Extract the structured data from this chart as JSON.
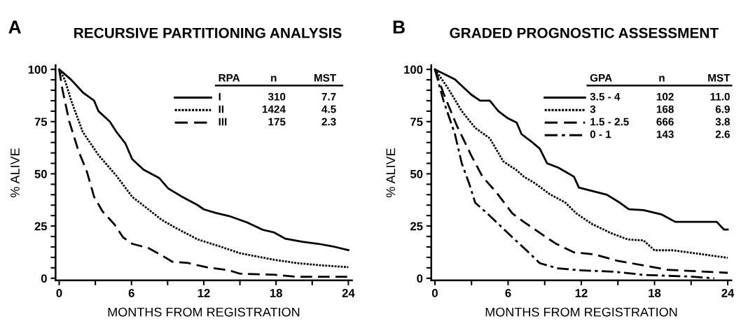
{
  "chart_data": [
    {
      "type": "line",
      "title": "RECURSIVE PARTITIONING ANALYSIS",
      "xlabel": "MONTHS FROM REGISTRATION",
      "ylabel": "% ALIVE",
      "legend_title": "RPA",
      "legend": "top right",
      "grid": false,
      "annotations": [
        "A",
        "n",
        "MST",
        "310",
        "7.7",
        "1424",
        "4.5",
        "175",
        "2.3"
      ],
      "xlim": [
        -0.3,
        24.3
      ],
      "ylim": [
        -1,
        102
      ],
      "xticks": [
        0,
        {
          "value": 3,
          "label": null
        },
        6,
        {
          "value": 9,
          "label": null
        },
        12,
        {
          "value": 15,
          "label": null
        },
        18,
        {
          "value": 21,
          "label": null
        },
        24
      ],
      "yticks": [
        0,
        {
          "value": 5,
          "label": null
        },
        {
          "value": 10,
          "label": null
        },
        {
          "value": 15,
          "label": null
        },
        {
          "value": 20,
          "label": null
        },
        25,
        {
          "value": 30,
          "label": null
        },
        {
          "value": 35,
          "label": null
        },
        {
          "value": 40,
          "label": null
        },
        {
          "value": 45,
          "label": null
        },
        50,
        {
          "value": 55,
          "label": null
        },
        {
          "value": 60,
          "label": null
        },
        {
          "value": 65,
          "label": null
        },
        {
          "value": 70,
          "label": null
        },
        75,
        {
          "value": 80,
          "label": null
        },
        {
          "value": 85,
          "label": null
        },
        {
          "value": 90,
          "label": null
        },
        {
          "value": 95,
          "label": null
        },
        100
      ],
      "series": [
        {
          "name": "I",
          "color": "#000000",
          "line_style": "solid",
          "x": [
            0,
            1.0,
            1.96,
            2.9,
            3.26,
            4.2,
            4.76,
            5.5,
            6.06,
            7.0,
            8.3,
            9.05,
            10.2,
            11.5,
            12.0,
            13.0,
            14.1,
            15.6,
            16.9,
            17.8,
            18.75,
            20.2,
            21.5,
            22.9,
            24
          ],
          "values": [
            100,
            95,
            89,
            85,
            80,
            75,
            70,
            64.5,
            57,
            52,
            48,
            43,
            39,
            35,
            33,
            31.3,
            29.8,
            26.7,
            23.2,
            22,
            19,
            17.5,
            16.5,
            15,
            13.5
          ]
        },
        {
          "name": "II",
          "color": "#000000",
          "line_style": "dotted",
          "x": [
            0,
            0.47,
            1.0,
            1.96,
            3.26,
            4.76,
            6.06,
            7.4,
            8.5,
            9.8,
            11.5,
            13.2,
            15.0,
            17.8,
            19.7,
            21.5,
            24
          ],
          "values": [
            100,
            95,
            85,
            70,
            59,
            49,
            39,
            33,
            28,
            23.7,
            18.6,
            15.5,
            12,
            8.9,
            7.3,
            6.3,
            5.3
          ]
        },
        {
          "name": "III",
          "color": "#000000",
          "line_style": "dashed",
          "x": [
            0,
            0.28,
            0.84,
            1.6,
            2.3,
            2.9,
            3.6,
            4.6,
            5.3,
            6.06,
            7.4,
            8.5,
            9.4,
            10.7,
            12.2,
            14.1,
            15.0,
            17.8,
            19.7,
            24
          ],
          "values": [
            100,
            90,
            75,
            61,
            51,
            39,
            32,
            25.7,
            19.6,
            16.5,
            14.5,
            11,
            7.9,
            7.3,
            5.3,
            3.8,
            2.2,
            1.7,
            0.7,
            0.7
          ]
        }
      ]
    },
    {
      "type": "line",
      "title": "GRADED PROGNOSTIC ASSESSMENT",
      "xlabel": "MONTHS FROM REGISTRATION",
      "ylabel": "% ALIVE",
      "legend_title": "GPA",
      "legend": "top right",
      "grid": false,
      "annotations": [
        "B",
        "n",
        "MST",
        "102",
        "11.0",
        "168",
        "6.9",
        "666",
        "3.8",
        "143",
        "2.6"
      ],
      "xlim": [
        -0.3,
        24.3
      ],
      "ylim": [
        -1,
        102
      ],
      "xticks": [
        0,
        {
          "value": 3,
          "label": null
        },
        6,
        {
          "value": 9,
          "label": null
        },
        12,
        {
          "value": 15,
          "label": null
        },
        18,
        {
          "value": 21,
          "label": null
        },
        24
      ],
      "yticks": [
        0,
        {
          "value": 5,
          "label": null
        },
        {
          "value": 10,
          "label": null
        },
        {
          "value": 15,
          "label": null
        },
        {
          "value": 20,
          "label": null
        },
        25,
        {
          "value": 30,
          "label": null
        },
        {
          "value": 35,
          "label": null
        },
        {
          "value": 40,
          "label": null
        },
        {
          "value": 45,
          "label": null
        },
        50,
        {
          "value": 55,
          "label": null
        },
        {
          "value": 60,
          "label": null
        },
        {
          "value": 65,
          "label": null
        },
        {
          "value": 70,
          "label": null
        },
        75,
        {
          "value": 80,
          "label": null
        },
        {
          "value": 85,
          "label": null
        },
        {
          "value": 90,
          "label": null
        },
        {
          "value": 95,
          "label": null
        },
        100
      ],
      "series": [
        {
          "name": "3.5 - 4",
          "color": "#000000",
          "line_style": "solid",
          "x": [
            0,
            1.64,
            2.96,
            3.7,
            4.5,
            5.2,
            6.0,
            6.7,
            7.1,
            8.0,
            8.6,
            9.2,
            10.1,
            10.7,
            11.4,
            11.8,
            12.75,
            14.1,
            15.2,
            15.9,
            17.1,
            18.6,
            19.7,
            23.1,
            23.7,
            24
          ],
          "values": [
            100,
            95.2,
            88,
            85,
            85,
            80,
            76.5,
            74.5,
            69,
            65,
            62,
            55,
            53,
            51,
            48.6,
            43.4,
            42,
            40,
            36,
            33,
            32.6,
            30.5,
            27,
            27,
            23.3,
            23.3
          ]
        },
        {
          "name": "3",
          "color": "#000000",
          "line_style": "dotted",
          "x": [
            0,
            1.07,
            2.2,
            3.3,
            4.5,
            5.6,
            6.7,
            7.3,
            8.2,
            9.4,
            10.7,
            11.6,
            12.9,
            14.4,
            15.8,
            17.1,
            18.0,
            19.5,
            21.4,
            24
          ],
          "values": [
            100,
            91,
            80,
            72,
            67,
            56,
            51.7,
            48.6,
            45.5,
            40.3,
            36.2,
            31,
            25.9,
            21.7,
            18.6,
            18.1,
            13.4,
            13.4,
            11.9,
            9.8
          ]
        },
        {
          "name": "1.5 - 2.5",
          "color": "#000000",
          "line_style": "dashed",
          "x": [
            0,
            0.7,
            1.8,
            2.96,
            3.9,
            5.0,
            6.35,
            7.3,
            8.6,
            9.9,
            11.4,
            13.1,
            15.0,
            17.1,
            19.0,
            24
          ],
          "values": [
            100,
            88.6,
            73,
            59,
            48.6,
            41.4,
            31,
            26.9,
            21.7,
            16.6,
            12.4,
            11.4,
            8.3,
            6.2,
            4.1,
            2.6
          ]
        },
        {
          "name": "0 - 1",
          "color": "#000000",
          "line_style": "dashdot",
          "x": [
            0,
            0.7,
            1.64,
            2.2,
            2.8,
            3.3,
            4.3,
            5.6,
            6.35,
            7.5,
            8.6,
            10.1,
            12.0,
            14.8,
            17.1,
            21.0,
            22.9
          ],
          "values": [
            100,
            85,
            69,
            55,
            45.5,
            36.2,
            31,
            23.8,
            19.6,
            13.4,
            7.2,
            4.7,
            3.8,
            3.1,
            1.6,
            0.8,
            0
          ]
        }
      ]
    }
  ]
}
